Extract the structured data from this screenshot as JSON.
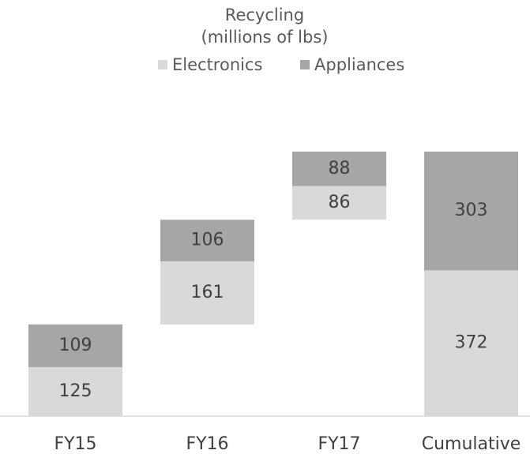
{
  "chart_data": {
    "type": "waterfall",
    "title": "Recycling",
    "subtitle": "(millions of lbs)",
    "categories": [
      "FY15",
      "FY16",
      "FY17",
      "Cumulative"
    ],
    "series": [
      {
        "name": "Electronics",
        "color": "#d9d9d9",
        "values": [
          125,
          161,
          86,
          372
        ]
      },
      {
        "name": "Appliances",
        "color": "#a6a6a6",
        "values": [
          109,
          106,
          88,
          303
        ]
      }
    ]
  }
}
